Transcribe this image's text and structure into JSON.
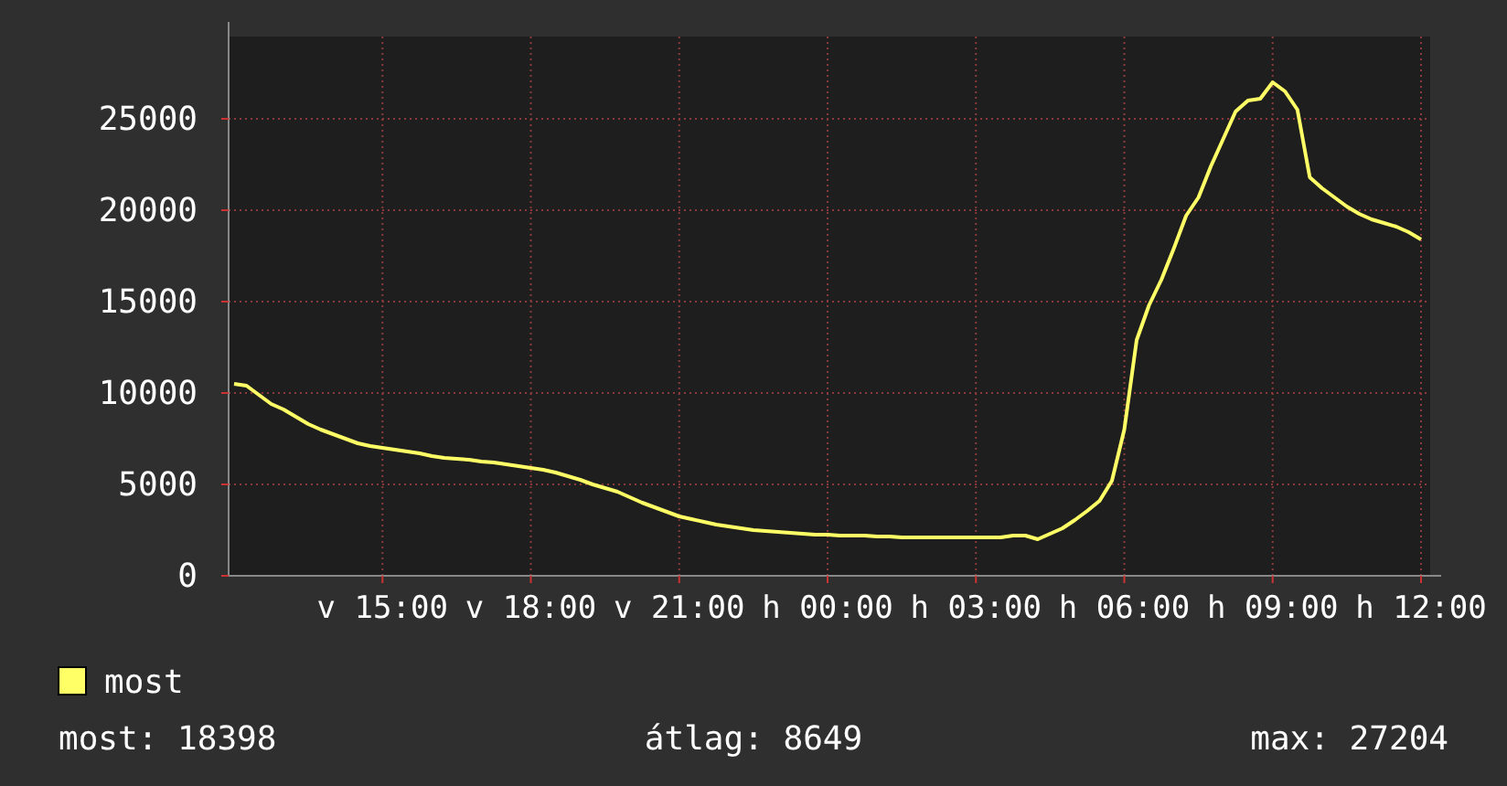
{
  "chart_data": {
    "type": "line",
    "categories": [
      null,
      null,
      null,
      null,
      null,
      null,
      null,
      null,
      null,
      null,
      null,
      null,
      "v 15:00",
      null,
      null,
      null,
      null,
      null,
      null,
      null,
      null,
      null,
      null,
      null,
      "v 18:00",
      null,
      null,
      null,
      null,
      null,
      null,
      null,
      null,
      null,
      null,
      null,
      "v 21:00",
      null,
      null,
      null,
      null,
      null,
      null,
      null,
      null,
      null,
      null,
      null,
      "h 00:00",
      null,
      null,
      null,
      null,
      null,
      null,
      null,
      null,
      null,
      null,
      null,
      "h 03:00",
      null,
      null,
      null,
      null,
      null,
      null,
      null,
      null,
      null,
      null,
      null,
      "h 06:00",
      null,
      null,
      null,
      null,
      null,
      null,
      null,
      null,
      null,
      null,
      null,
      "h 09:00",
      null,
      null,
      null,
      null,
      null,
      null,
      null,
      null,
      null,
      null,
      null,
      "h 12:00"
    ],
    "series": [
      {
        "name": "most",
        "color": "#ffff66",
        "values": [
          10500,
          10400,
          9900,
          9400,
          9100,
          8700,
          8300,
          8000,
          7750,
          7500,
          7250,
          7100,
          7000,
          6900,
          6800,
          6700,
          6550,
          6450,
          6400,
          6350,
          6250,
          6200,
          6100,
          6000,
          5900,
          5800,
          5650,
          5450,
          5250,
          5000,
          4800,
          4600,
          4300,
          4000,
          3750,
          3500,
          3250,
          3100,
          2950,
          2800,
          2700,
          2600,
          2500,
          2450,
          2400,
          2350,
          2300,
          2250,
          2250,
          2200,
          2200,
          2200,
          2150,
          2150,
          2100,
          2100,
          2100,
          2100,
          2100,
          2100,
          2100,
          2100,
          2100,
          2200,
          2200,
          2000,
          2300,
          2600,
          3050,
          3550,
          4100,
          5200,
          8000,
          12900,
          14800,
          16200,
          17900,
          19700,
          20700,
          22400,
          23900,
          25400,
          26000,
          26100,
          27000,
          26500,
          25500,
          21800,
          21200,
          20700,
          20200,
          19800,
          19500,
          19300,
          19100,
          18800,
          18400
        ]
      }
    ],
    "ylim": [
      0,
      29500
    ],
    "yticks": [
      0,
      5000,
      10000,
      15000,
      20000,
      25000
    ],
    "grid": true,
    "legend": "bottom left",
    "line_style": "solid",
    "marker": "none",
    "annotations": [
      "most: 18398",
      "átlag: 8649",
      "max: 27204"
    ]
  }
}
